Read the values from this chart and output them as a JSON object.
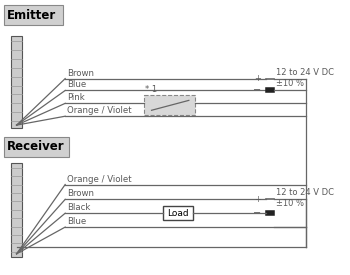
{
  "bg_color": "#ffffff",
  "emitter_label": "Emitter",
  "receiver_label": "Receiver",
  "emitter_wires": [
    "Brown",
    "Blue",
    "Pink",
    "Orange / Violet"
  ],
  "receiver_wires": [
    "Orange / Violet",
    "Brown",
    "Black",
    "Blue"
  ],
  "voltage_label1": "12 to 24 V DC",
  "voltage_label2": "±10 %",
  "load_label": "Load",
  "switch_label": "* 1",
  "label_color": "#5a5a5a",
  "wire_color": "#666666",
  "text_color": "#000000",
  "header_bg": "#d0d0d0",
  "header_border": "#888888",
  "strip_fill": "#cccccc",
  "strip_border": "#555555",
  "switch_fill": "#d8d8d8",
  "load_fill": "#ffffff"
}
